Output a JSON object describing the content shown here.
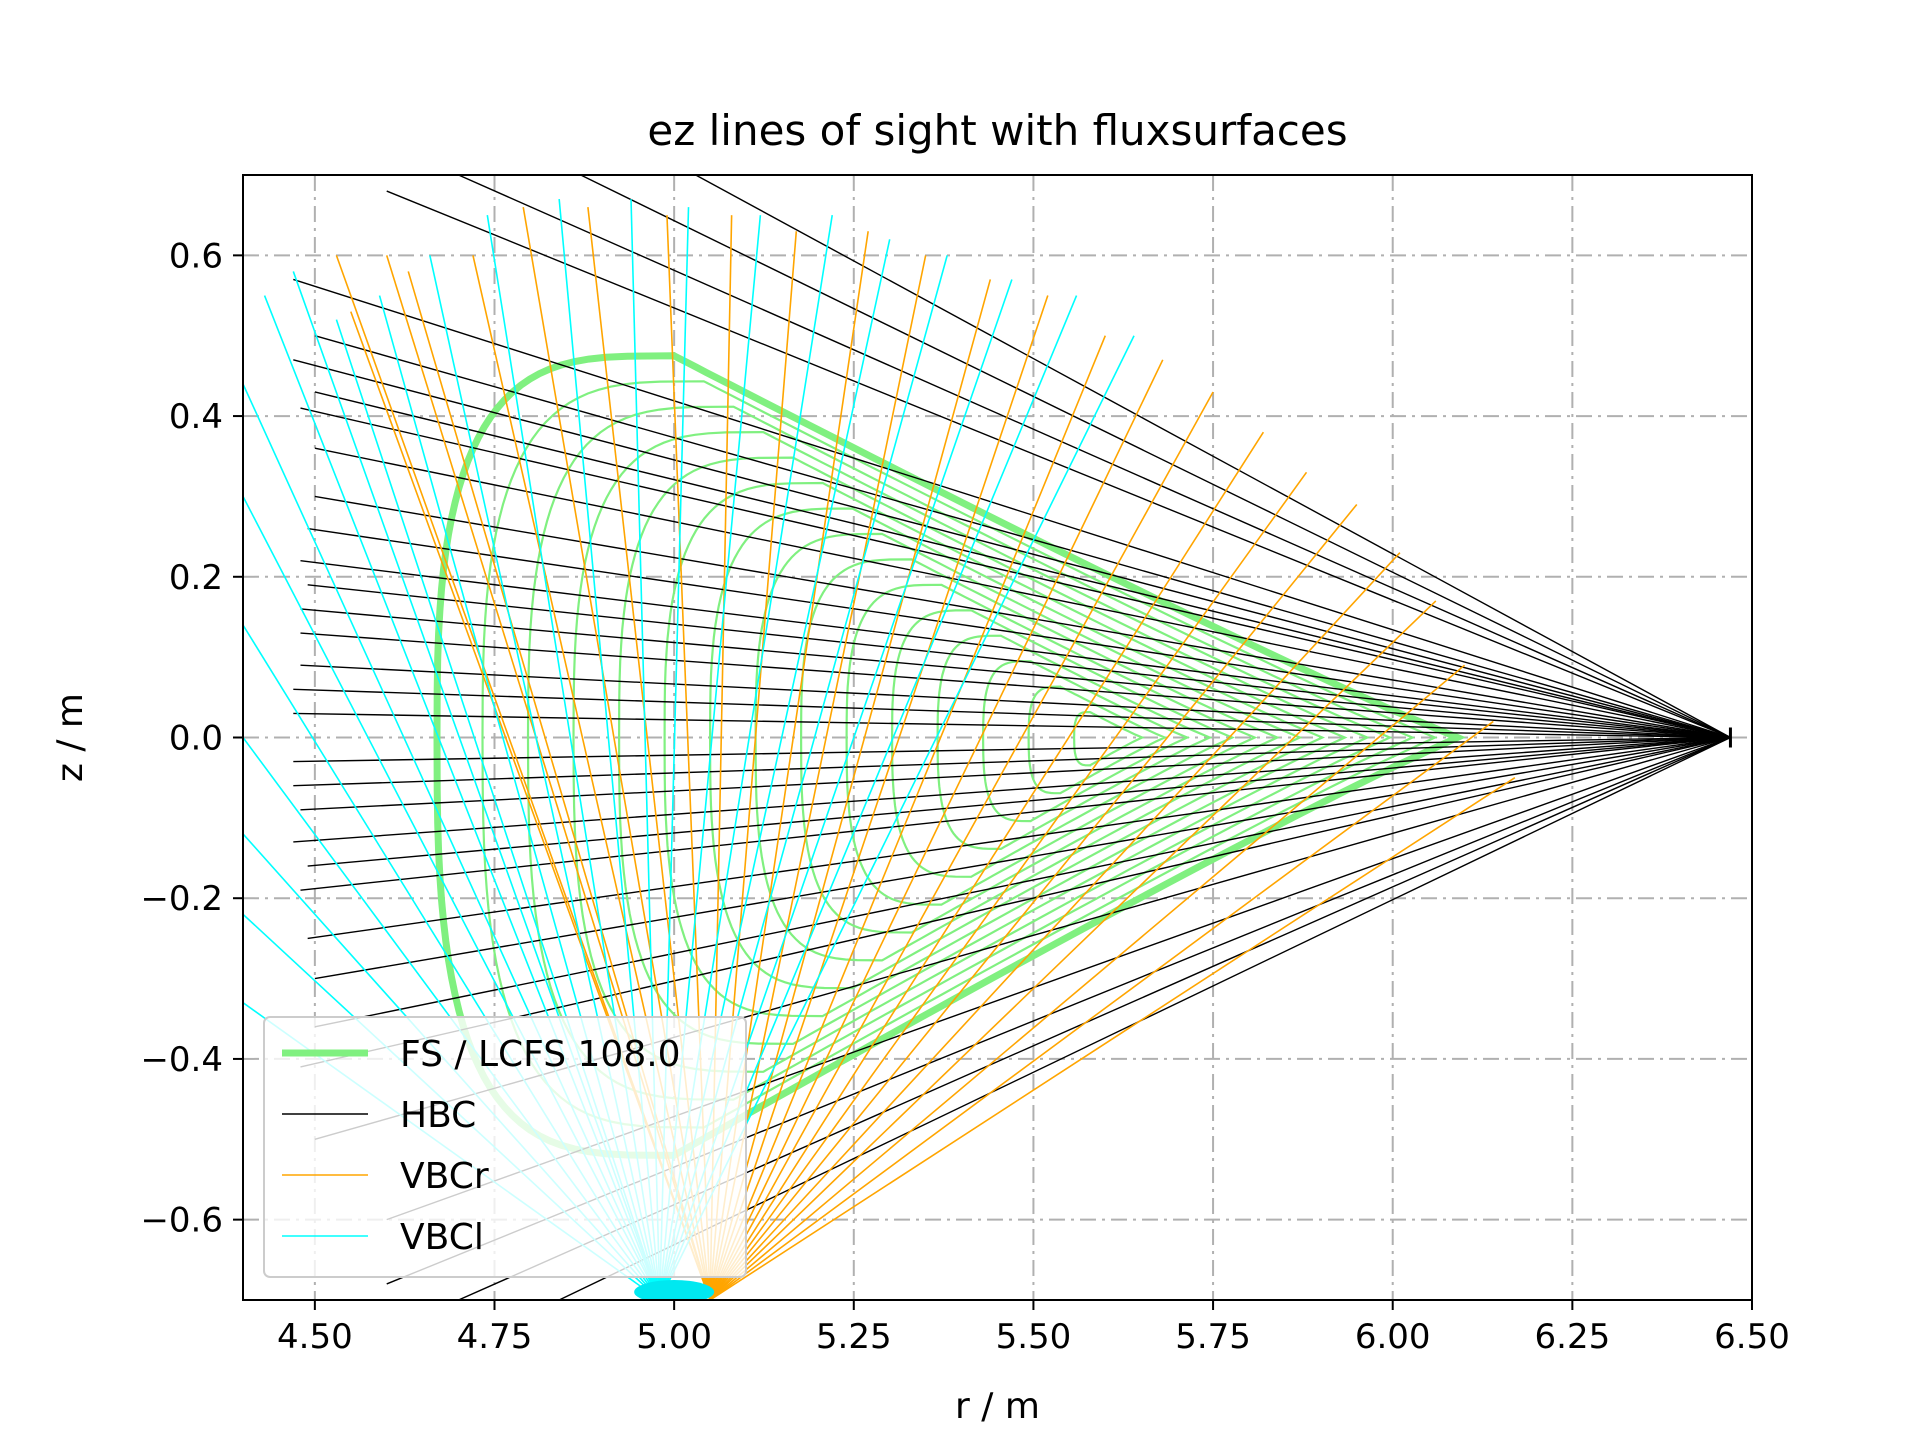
{
  "chart_data": {
    "type": "line",
    "title": "ez lines of sight with fluxsurfaces",
    "xlabel": "r / m",
    "ylabel": "z / m",
    "xlim": [
      4.4,
      6.5
    ],
    "ylim": [
      -0.7,
      0.7
    ],
    "xticks": [
      4.5,
      4.75,
      5.0,
      5.25,
      5.5,
      5.75,
      6.0,
      6.25,
      6.5
    ],
    "xtick_labels": [
      "4.50",
      "4.75",
      "5.00",
      "5.25",
      "5.50",
      "5.75",
      "6.00",
      "6.25",
      "6.50"
    ],
    "yticks": [
      0.6,
      0.4,
      0.2,
      0.0,
      -0.2,
      -0.4,
      -0.6
    ],
    "ytick_labels": [
      "0.6",
      "0.4",
      "0.2",
      "0.0",
      "−0.2",
      "−0.4",
      "−0.6"
    ],
    "grid": true,
    "legend_position": "lower-left",
    "series": [
      {
        "name": "FS / LCFS 108.0",
        "color": "#80f080",
        "kind": "flux-surfaces",
        "lcfs": {
          "r_inner": 4.67,
          "r_outer": 6.09,
          "z_top": 0.475,
          "z_bottom": -0.52,
          "r_top": 5.0
        },
        "axis": {
          "r": 5.62,
          "z": 0.0
        },
        "count": 14
      },
      {
        "name": "HBC",
        "color": "#000000",
        "kind": "fan",
        "origin": [
          6.47,
          0.0
        ],
        "ends": [
          [
            4.6,
            0.68
          ],
          [
            4.7,
            0.7
          ],
          [
            4.87,
            0.7
          ],
          [
            5.03,
            0.7
          ],
          [
            4.47,
            0.57
          ],
          [
            4.5,
            0.5
          ],
          [
            4.47,
            0.47
          ],
          [
            4.5,
            0.43
          ],
          [
            4.48,
            0.41
          ],
          [
            4.5,
            0.36
          ],
          [
            4.5,
            0.3
          ],
          [
            4.49,
            0.26
          ],
          [
            4.48,
            0.22
          ],
          [
            4.49,
            0.19
          ],
          [
            4.48,
            0.16
          ],
          [
            4.48,
            0.13
          ],
          [
            4.48,
            0.09
          ],
          [
            4.47,
            0.06
          ],
          [
            4.47,
            0.03
          ],
          [
            4.47,
            -0.03
          ],
          [
            4.47,
            -0.06
          ],
          [
            4.48,
            -0.09
          ],
          [
            4.47,
            -0.13
          ],
          [
            4.49,
            -0.16
          ],
          [
            4.48,
            -0.19
          ],
          [
            4.49,
            -0.25
          ],
          [
            4.5,
            -0.3
          ],
          [
            4.5,
            -0.36
          ],
          [
            4.48,
            -0.41
          ],
          [
            4.5,
            -0.5
          ],
          [
            4.6,
            -0.6
          ],
          [
            4.6,
            -0.68
          ],
          [
            4.7,
            -0.7
          ],
          [
            4.84,
            -0.7
          ]
        ]
      },
      {
        "name": "VBCr",
        "color": "#ffa500",
        "kind": "fan",
        "origin": [
          5.05,
          -0.7
        ],
        "ends": [
          [
            4.53,
            0.6
          ],
          [
            4.55,
            0.53
          ],
          [
            4.6,
            0.6
          ],
          [
            4.63,
            0.58
          ],
          [
            4.72,
            0.6
          ],
          [
            4.79,
            0.66
          ],
          [
            4.88,
            0.66
          ],
          [
            4.99,
            0.65
          ],
          [
            5.08,
            0.65
          ],
          [
            5.17,
            0.63
          ],
          [
            5.27,
            0.63
          ],
          [
            5.35,
            0.6
          ],
          [
            5.44,
            0.57
          ],
          [
            5.52,
            0.55
          ],
          [
            5.6,
            0.5
          ],
          [
            5.68,
            0.47
          ],
          [
            5.75,
            0.43
          ],
          [
            5.82,
            0.38
          ],
          [
            5.88,
            0.33
          ],
          [
            5.95,
            0.29
          ],
          [
            6.01,
            0.23
          ],
          [
            6.06,
            0.17
          ],
          [
            6.1,
            0.09
          ],
          [
            6.14,
            0.02
          ],
          [
            6.17,
            -0.05
          ]
        ]
      },
      {
        "name": "VBCl",
        "color": "#00ffff",
        "kind": "fan",
        "origin": [
          4.98,
          -0.7
        ],
        "ends": [
          [
            4.4,
            0.44
          ],
          [
            4.4,
            0.3
          ],
          [
            4.4,
            0.14
          ],
          [
            4.4,
            0.0
          ],
          [
            4.4,
            -0.12
          ],
          [
            4.4,
            -0.22
          ],
          [
            4.4,
            -0.33
          ],
          [
            4.43,
            0.55
          ],
          [
            4.47,
            0.58
          ],
          [
            4.53,
            0.52
          ],
          [
            4.59,
            0.55
          ],
          [
            4.66,
            0.6
          ],
          [
            4.74,
            0.65
          ],
          [
            4.84,
            0.67
          ],
          [
            4.94,
            0.67
          ],
          [
            5.02,
            0.66
          ],
          [
            5.12,
            0.65
          ],
          [
            5.22,
            0.65
          ],
          [
            5.3,
            0.62
          ],
          [
            5.38,
            0.6
          ],
          [
            5.47,
            0.57
          ],
          [
            5.56,
            0.55
          ],
          [
            5.64,
            0.5
          ]
        ]
      }
    ]
  }
}
